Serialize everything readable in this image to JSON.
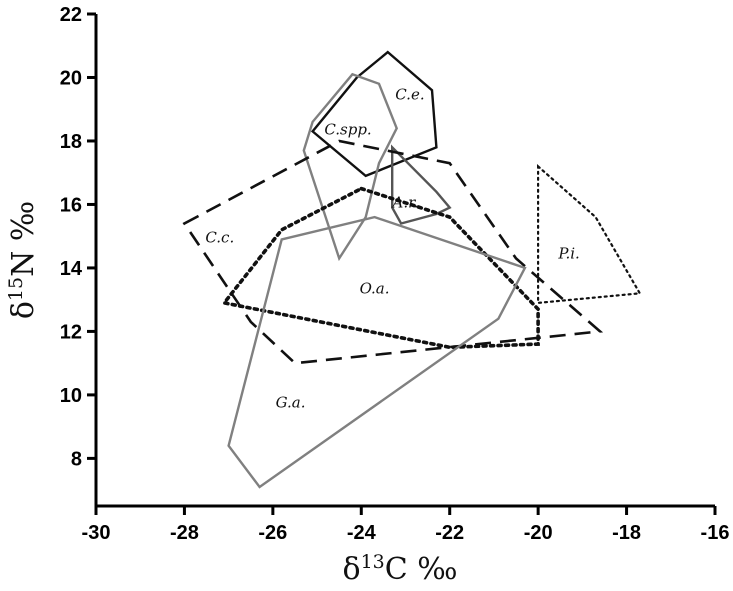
{
  "chart_data": {
    "type": "scatter",
    "subtype": "convex-hull polygons",
    "xlabel_symbol": "δ",
    "xlabel_sup": "13",
    "xlabel_rest": "C ‰",
    "ylabel_symbol": "δ",
    "ylabel_sup": "15",
    "ylabel_rest": "N ‰",
    "xlim": [
      -30,
      -16
    ],
    "ylim": [
      6.5,
      22
    ],
    "xticks": [
      "-30",
      "-28",
      "-26",
      "-24",
      "-22",
      "-20",
      "-18",
      "-16"
    ],
    "yticks": [
      "8",
      "10",
      "12",
      "14",
      "16",
      "18",
      "20",
      "22"
    ],
    "grid": false,
    "legend": "none",
    "series": [
      {
        "name": "C.e.",
        "color": "#111111",
        "dash": "solid",
        "label_at": [
          -22.9,
          19.3
        ],
        "points": [
          [
            -23.4,
            20.8
          ],
          [
            -22.4,
            19.6
          ],
          [
            -22.3,
            17.8
          ],
          [
            -23.9,
            16.9
          ],
          [
            -25.1,
            18.3
          ],
          [
            -24.1,
            20.0
          ]
        ]
      },
      {
        "name": "C.spp.",
        "color": "#808080",
        "dash": "solid",
        "label_at": [
          -24.3,
          18.2
        ],
        "points": [
          [
            -24.2,
            20.1
          ],
          [
            -23.6,
            19.8
          ],
          [
            -23.2,
            18.4
          ],
          [
            -23.6,
            17.3
          ],
          [
            -23.9,
            15.6
          ],
          [
            -24.5,
            14.3
          ],
          [
            -25.3,
            17.7
          ],
          [
            -25.1,
            18.6
          ]
        ]
      },
      {
        "name": "A.r.",
        "color": "#555555",
        "dash": "solid",
        "label_at": [
          -23.0,
          15.9
        ],
        "points": [
          [
            -23.3,
            17.8
          ],
          [
            -22.3,
            16.4
          ],
          [
            -22.0,
            15.9
          ],
          [
            -22.3,
            15.7
          ],
          [
            -23.1,
            15.4
          ],
          [
            -23.3,
            15.9
          ]
        ]
      },
      {
        "name": "C.c.",
        "color": "#111111",
        "dash": "long-dash",
        "label_at": [
          -27.2,
          14.8
        ],
        "points": [
          [
            -28.0,
            15.4
          ],
          [
            -24.5,
            18.0
          ],
          [
            -22.0,
            17.3
          ],
          [
            -20.5,
            14.3
          ],
          [
            -18.6,
            12.0
          ],
          [
            -25.5,
            11.0
          ],
          [
            -26.5,
            12.3
          ]
        ]
      },
      {
        "name": "O.a.",
        "color": "#111111",
        "dash": "dotted",
        "label_at": [
          -23.7,
          13.2
        ],
        "points": [
          [
            -24.0,
            16.5
          ],
          [
            -22.0,
            15.6
          ],
          [
            -20.0,
            12.7
          ],
          [
            -20.0,
            11.6
          ],
          [
            -22.0,
            11.5
          ],
          [
            -27.1,
            12.9
          ],
          [
            -25.8,
            15.2
          ]
        ]
      },
      {
        "name": "G.a.",
        "color": "#808080",
        "dash": "solid",
        "label_at": [
          -25.6,
          9.6
        ],
        "points": [
          [
            -25.8,
            14.9
          ],
          [
            -23.7,
            15.6
          ],
          [
            -20.3,
            14.0
          ],
          [
            -20.9,
            12.4
          ],
          [
            -26.3,
            7.1
          ],
          [
            -27.0,
            8.4
          ]
        ]
      },
      {
        "name": "P.i.",
        "color": "#111111",
        "dash": "fine-dot",
        "label_at": [
          -19.3,
          14.3
        ],
        "points": [
          [
            -20.0,
            17.2
          ],
          [
            -18.7,
            15.6
          ],
          [
            -17.7,
            13.2
          ],
          [
            -20.0,
            12.9
          ]
        ]
      }
    ]
  }
}
